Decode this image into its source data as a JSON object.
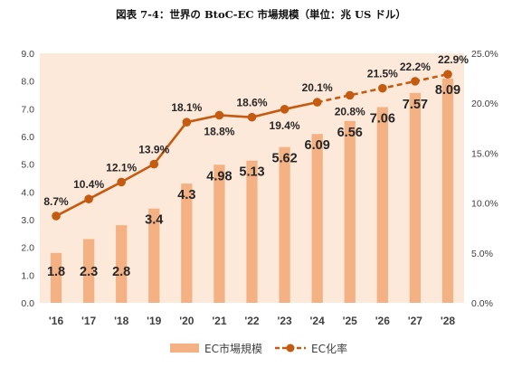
{
  "chart_data": {
    "type": "bar",
    "title": "図表 7-4：世界の BtoC-EC 市場規模（単位：兆 US ドル）",
    "categories": [
      "'16",
      "'17",
      "'18",
      "'19",
      "'20",
      "'21",
      "'22",
      "'23",
      "'24",
      "'25",
      "'26",
      "'27",
      "'28"
    ],
    "series": [
      {
        "name": "EC市場規模",
        "type": "bar",
        "axis": "left",
        "values": [
          1.8,
          2.3,
          2.8,
          3.4,
          4.3,
          4.98,
          5.13,
          5.62,
          6.09,
          6.56,
          7.06,
          7.57,
          8.09
        ],
        "labels": [
          "1.8",
          "2.3",
          "2.8",
          "3.4",
          "4.3",
          "4.98",
          "5.13",
          "5.62",
          "6.09",
          "6.56",
          "7.06",
          "7.57",
          "8.09"
        ],
        "color": "#F4B183"
      },
      {
        "name": "EC化率",
        "type": "line",
        "axis": "right",
        "values": [
          8.7,
          10.4,
          12.1,
          13.9,
          18.1,
          18.8,
          18.6,
          19.4,
          20.1,
          20.8,
          21.5,
          22.2,
          22.9
        ],
        "labels": [
          "8.7%",
          "10.4%",
          "12.1%",
          "13.9%",
          "18.1%",
          "18.8%",
          "18.6%",
          "19.4%",
          "20.1%",
          "20.8%",
          "21.5%",
          "22.2%",
          "22.9%"
        ],
        "dashed_from_index": 8,
        "color": "#C55A11"
      }
    ],
    "y_left": {
      "min": 0,
      "max": 9,
      "ticks": [
        "0.0",
        "1.0",
        "2.0",
        "3.0",
        "4.0",
        "5.0",
        "6.0",
        "7.0",
        "8.0",
        "9.0"
      ]
    },
    "y_right": {
      "min": 0,
      "max": 25,
      "ticks": [
        "0.0%",
        "5.0%",
        "10.0%",
        "15.0%",
        "20.0%",
        "25.0%"
      ]
    },
    "plot_background": "#FDE9D9",
    "grid": false,
    "legend": "bottom"
  }
}
